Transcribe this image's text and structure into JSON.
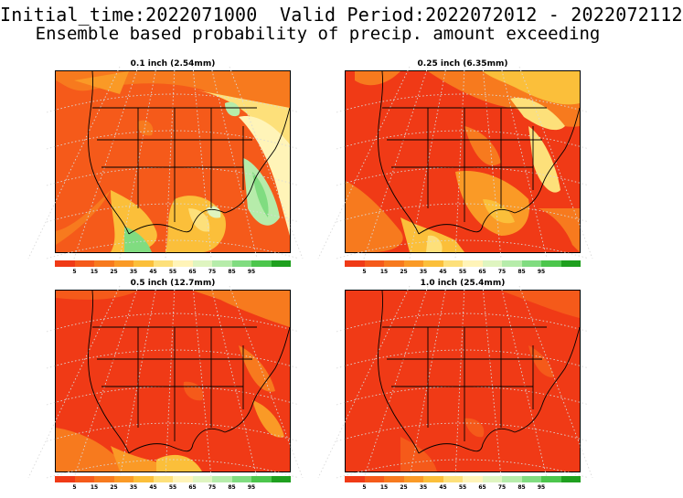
{
  "header": {
    "line1": "Initial_time:2022071000  Valid Period:2022072012 - 2022072112",
    "line2": "Ensemble based probability of precip. amount exceeding"
  },
  "panels": [
    {
      "title": "0.1 inch (2.54mm)"
    },
    {
      "title": "0.25 inch (6.35mm)"
    },
    {
      "title": "0.5 inch (12.7mm)"
    },
    {
      "title": "1.0 inch (25.4mm)"
    }
  ],
  "colorbar": {
    "colors": [
      "#f03a16",
      "#f55a1a",
      "#f77a1e",
      "#fa9a26",
      "#fbbf3a",
      "#fde07a",
      "#fff4b8",
      "#dff5c0",
      "#b6ecaa",
      "#80dc80",
      "#4cc64c",
      "#1fa01f"
    ],
    "tick_labels": [
      "5",
      "15",
      "25",
      "35",
      "45",
      "55",
      "65",
      "75",
      "85",
      "95"
    ]
  },
  "legend_colors": {
    "very_low": "#f03a16",
    "low": "#f77a1e",
    "mid": "#fbbf3a",
    "high": "#fff4b8",
    "green_light": "#b6ecaa",
    "green": "#4cc64c"
  }
}
